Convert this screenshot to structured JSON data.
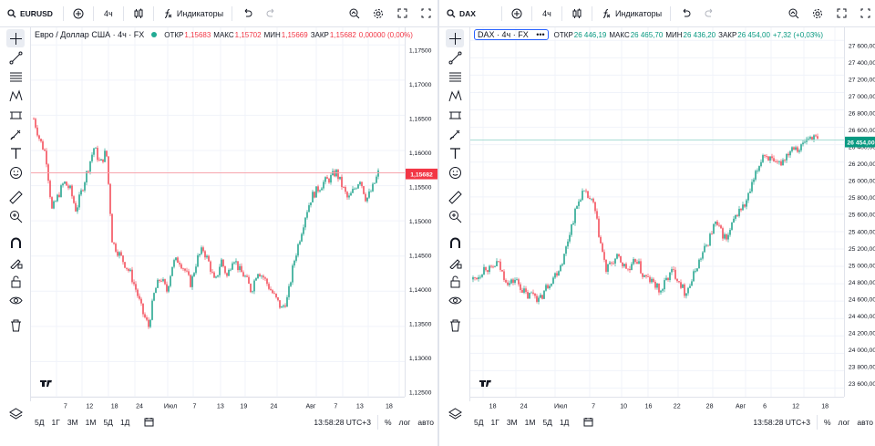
{
  "left": {
    "symbol": "EURUSD",
    "interval": "4ч",
    "indicators_label": "Индикаторы",
    "legend": {
      "title": "Евро / Доллар США · 4ч · FX",
      "open_label": "ОТКР",
      "open": "1,15683",
      "high_label": "МАКС",
      "high": "1,15702",
      "low_label": "МИН",
      "low": "1,15669",
      "close_label": "ЗАКР",
      "close": "1,15682",
      "change": "0,00000 (0,00%)"
    },
    "price_ticks": [
      "1,17500",
      "1,17000",
      "1,16500",
      "1,16000",
      "1,15500",
      "1,15000",
      "1,14500",
      "1,14000",
      "1,13500",
      "1,13000",
      "1,12500"
    ],
    "last_price": "1,15682",
    "time_ticks": [
      "7",
      "12",
      "18",
      "24",
      "Июл",
      "7",
      "13",
      "19",
      "24",
      "Авг",
      "7",
      "13",
      "18"
    ],
    "ranges": [
      "5Д",
      "1Г",
      "3М",
      "1М",
      "5Д",
      "1Д"
    ],
    "clock": "13:58:28 UTC+3",
    "percent": "%",
    "log": "лог",
    "auto": "авто",
    "up_color": "#089981",
    "down_color": "#f23645",
    "chart_data": {
      "type": "candlestick",
      "symbol": "EURUSD",
      "interval": "4h",
      "ylim": [
        1.125,
        1.1775
      ],
      "x_labels": [
        "7",
        "12",
        "18",
        "24",
        "Июл",
        "7",
        "13",
        "19",
        "24",
        "Авг",
        "7",
        "13",
        "18"
      ],
      "close_path": [
        1.1645,
        1.1615,
        1.1595,
        1.1515,
        1.1535,
        1.1555,
        1.1545,
        1.1515,
        1.1545,
        1.1575,
        1.1605,
        1.158,
        1.16,
        1.147,
        1.1455,
        1.144,
        1.1425,
        1.14,
        1.137,
        1.135,
        1.14,
        1.142,
        1.14,
        1.144,
        1.1445,
        1.143,
        1.141,
        1.1445,
        1.146,
        1.144,
        1.141,
        1.1445,
        1.142,
        1.145,
        1.143,
        1.142,
        1.14,
        1.143,
        1.142,
        1.1405,
        1.139,
        1.1375,
        1.139,
        1.144,
        1.1475,
        1.151,
        1.1535,
        1.1545,
        1.1555,
        1.156,
        1.157,
        1.155,
        1.153,
        1.1545,
        1.156,
        1.153,
        1.1545,
        1.1568
      ],
      "last": 1.15682
    }
  },
  "right": {
    "symbol": "DAX",
    "interval": "4ч",
    "indicators_label": "Индикаторы",
    "legend": {
      "title": "DAX · 4ч · FX",
      "more": "•••",
      "open_label": "ОТКР",
      "open": "26 446,19",
      "high_label": "МАКС",
      "high": "26 465,70",
      "low_label": "МИН",
      "low": "26 436,20",
      "close_label": "ЗАКР",
      "close": "26 454,00",
      "change": "+7,32 (+0,03%)"
    },
    "price_ticks": [
      "27 600,00",
      "27 400,00",
      "27 200,00",
      "27 000,00",
      "26 800,00",
      "26 600,00",
      "26 400,00",
      "26 200,00",
      "26 000,00",
      "25 800,00",
      "25 600,00",
      "25 400,00",
      "25 200,00",
      "25 000,00",
      "24 800,00",
      "24 600,00",
      "24 400,00",
      "24 200,00",
      "24 000,00",
      "23 800,00",
      "23 600,00"
    ],
    "last_price": "26 454,00",
    "time_ticks": [
      "18",
      "24",
      "Июл",
      "7",
      "10",
      "16",
      "22",
      "28",
      "Авг",
      "6",
      "12",
      "18"
    ],
    "ranges": [
      "5Д",
      "1Г",
      "3М",
      "1М",
      "5Д",
      "1Д"
    ],
    "clock": "13:58:28 UTC+3",
    "percent": "%",
    "log": "лог",
    "auto": "авто",
    "up_color": "#089981",
    "down_color": "#f23645",
    "chart_data": {
      "type": "candlestick",
      "symbol": "DAX",
      "interval": "4h",
      "ylim": [
        23500,
        27750
      ],
      "x_labels": [
        "18",
        "24",
        "Июл",
        "7",
        "10",
        "16",
        "22",
        "28",
        "Авг",
        "6",
        "12",
        "18"
      ],
      "close_path": [
        24850,
        24900,
        25000,
        24950,
        25050,
        24900,
        24800,
        24850,
        24750,
        24650,
        24700,
        24600,
        24750,
        24850,
        24950,
        25100,
        25400,
        25650,
        25850,
        25800,
        25700,
        25300,
        24950,
        25050,
        25100,
        25000,
        24950,
        25100,
        24900,
        24850,
        24800,
        24700,
        24850,
        24950,
        24850,
        24700,
        24800,
        25000,
        25150,
        25300,
        25500,
        25400,
        25300,
        25500,
        25650,
        25700,
        25900,
        26100,
        26300,
        26250,
        26150,
        26200,
        26300,
        26400,
        26350,
        26450,
        26500,
        26454
      ],
      "last": 26454
    }
  }
}
